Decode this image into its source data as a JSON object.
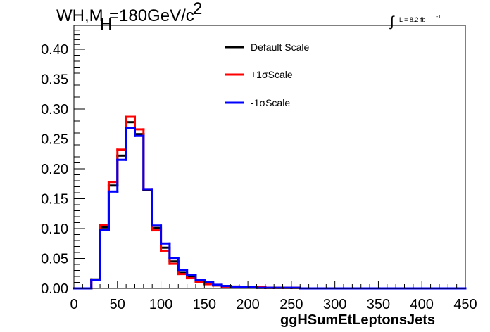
{
  "chart_data": {
    "type": "line",
    "title": {
      "base": "WH,M",
      "subscript": "H",
      "value": "=180GeV/c",
      "superscript": "2"
    },
    "luminosity": {
      "integral_symbol": "∫",
      "text": "L = 8.2 fb",
      "superscript": "-1"
    },
    "xlabel": "ggHSumEtLeptonsJets",
    "ylabel": "",
    "xlim": [
      0,
      450
    ],
    "ylim": [
      0,
      0.44
    ],
    "xticks": [
      "0",
      "50",
      "100",
      "150",
      "200",
      "250",
      "300",
      "350",
      "400",
      "450"
    ],
    "yticks": [
      "0.00",
      "0.05",
      "0.10",
      "0.15",
      "0.20",
      "0.25",
      "0.30",
      "0.35",
      "0.40"
    ],
    "bin_edges": [
      0,
      10,
      20,
      30,
      40,
      50,
      60,
      70,
      80,
      90,
      100,
      110,
      120,
      130,
      140,
      150,
      160,
      170,
      180,
      190,
      200,
      210,
      220,
      230,
      240,
      250,
      260,
      270,
      280,
      290,
      300,
      310,
      320,
      330,
      340,
      350,
      360,
      370,
      380,
      390,
      400,
      410,
      420,
      430,
      440,
      450
    ],
    "series": [
      {
        "name": "Default Scale",
        "color": "#000000",
        "values": [
          0,
          0,
          0.015,
          0.102,
          0.172,
          0.222,
          0.278,
          0.258,
          0.165,
          0.101,
          0.068,
          0.045,
          0.027,
          0.019,
          0.012,
          0.008,
          0.005,
          0.004,
          0.003,
          0.002,
          0.002,
          0.001,
          0.001,
          0.001,
          0.001,
          0.001,
          0,
          0,
          0,
          0,
          0,
          0,
          0,
          0,
          0,
          0,
          0,
          0,
          0,
          0,
          0,
          0,
          0,
          0,
          0
        ]
      },
      {
        "name": "+1σScale",
        "color": "#ff0000",
        "values": [
          0,
          0,
          0.014,
          0.106,
          0.178,
          0.232,
          0.287,
          0.266,
          0.166,
          0.097,
          0.063,
          0.041,
          0.024,
          0.017,
          0.011,
          0.007,
          0.005,
          0.003,
          0.003,
          0.002,
          0.002,
          0.002,
          0.001,
          0.001,
          0.001,
          0.001,
          0,
          0,
          0,
          0,
          0,
          0,
          0,
          0,
          0,
          0,
          0,
          0,
          0,
          0,
          0,
          0,
          0,
          0,
          0
        ]
      },
      {
        "name": "-1σScale",
        "color": "#0000ff",
        "values": [
          0,
          0,
          0.014,
          0.098,
          0.162,
          0.215,
          0.268,
          0.255,
          0.166,
          0.105,
          0.075,
          0.051,
          0.031,
          0.022,
          0.014,
          0.01,
          0.006,
          0.004,
          0.003,
          0.002,
          0.002,
          0.001,
          0.001,
          0.001,
          0.001,
          0.001,
          0,
          0,
          0,
          0,
          0,
          0,
          0,
          0,
          0,
          0,
          0,
          0,
          0,
          0,
          0,
          0,
          0,
          0,
          0
        ]
      }
    ],
    "legend": {
      "placement": "top-center",
      "entries": [
        "Default Scale",
        "+1σScale",
        "-1σScale"
      ]
    },
    "grid": false
  }
}
